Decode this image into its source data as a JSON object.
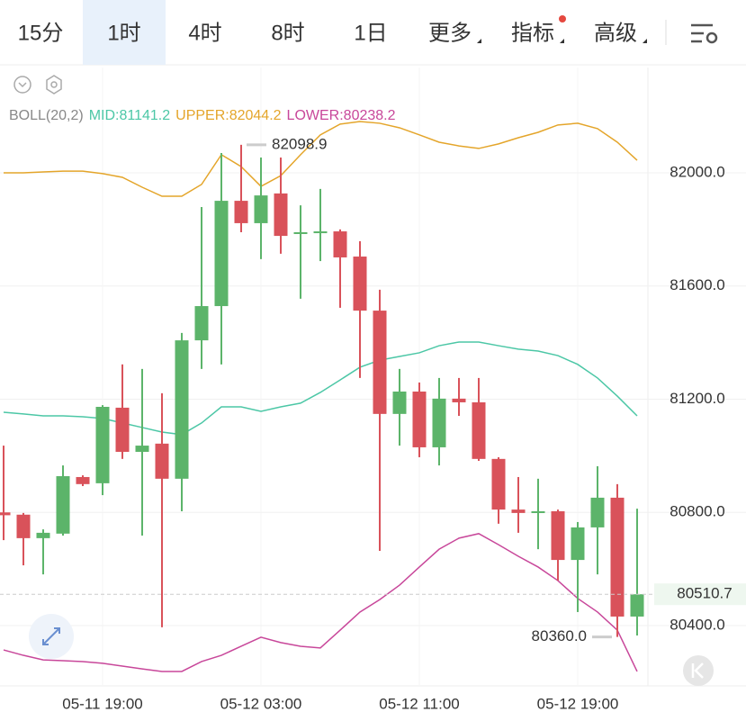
{
  "tabs": {
    "items": [
      "15分",
      "1时",
      "4时",
      "8时",
      "1日",
      "更多",
      "指标",
      "高级"
    ],
    "active": 1
  },
  "chart_data": {
    "type": "candlestick",
    "indicator": "BOLL(20,2)",
    "categories": [
      null,
      null,
      null,
      null,
      null,
      "05-11 19:00",
      null,
      null,
      null,
      null,
      null,
      null,
      null,
      "05-12 03:00",
      null,
      null,
      null,
      null,
      null,
      null,
      null,
      "05-12 11:00",
      null,
      null,
      null,
      null,
      null,
      null,
      null,
      "05-12 19:00",
      null,
      null,
      null
    ],
    "open": [
      80800,
      80792,
      80709,
      80725,
      80925,
      80903,
      81170,
      81014,
      81043,
      80919,
      81408,
      81529,
      81901,
      81822,
      81927,
      81785,
      81787,
      81793,
      81704,
      81513,
      81148,
      81227,
      81030,
      81202,
      81189,
      80989,
      80810,
      80798,
      80804,
      80632,
      80747,
      80852,
      80432
    ],
    "high": [
      81036,
      80798,
      80740,
      80966,
      80931,
      81179,
      81323,
      81307,
      81221,
      81434,
      81879,
      82070,
      82098.9,
      82054,
      82054,
      81885,
      81943,
      81800,
      81758,
      81587,
      81307,
      81259,
      81275,
      81275,
      81275,
      80995,
      80925,
      80919,
      80810,
      80766,
      80963,
      80900,
      80813
    ],
    "low": [
      80702,
      80613,
      80581,
      80718,
      80893,
      80861,
      80989,
      80718,
      80394,
      80804,
      81307,
      81323,
      81790,
      81695,
      81714,
      81555,
      81688,
      81523,
      81275,
      80664,
      81036,
      80995,
      80966,
      81141,
      80982,
      80760,
      80728,
      80670,
      80559,
      80448,
      80581,
      80360,
      80365
    ],
    "close": [
      80790,
      80709,
      80728,
      80928,
      80900,
      81173,
      81014,
      81036,
      80919,
      81408,
      81529,
      81901,
      81822,
      81920,
      81777,
      81790,
      81793,
      81701,
      81513,
      81148,
      81227,
      81030,
      81202,
      81189,
      80989,
      80810,
      80798,
      80804,
      80632,
      80747,
      80852,
      80432,
      80510.7
    ],
    "up_color": "#5cb46a",
    "down_color": "#d9525a",
    "bands": [
      {
        "name": "MID:81141.2",
        "color": "#4cc7a6",
        "values": [
          81154,
          81148,
          81141,
          81141,
          81138,
          81132,
          81116,
          81100,
          81084,
          81075,
          81116,
          81173,
          81173,
          81157,
          81173,
          81186,
          81224,
          81268,
          81313,
          81338,
          81351,
          81364,
          81389,
          81402,
          81402,
          81389,
          81377,
          81370,
          81354,
          81323,
          81275,
          81211,
          81141.2
        ]
      },
      {
        "name": "UPPER:82044.2",
        "color": "#e4a52a",
        "values": [
          82000,
          82000,
          82003,
          82006,
          82006,
          81997,
          81984,
          81949,
          81917,
          81917,
          81959,
          82064,
          82022,
          81952,
          81990,
          82064,
          82134,
          82172,
          82181,
          82175,
          82159,
          82134,
          82108,
          82095,
          82086,
          82102,
          82124,
          82143,
          82169,
          82175,
          82156,
          82108,
          82044.2
        ]
      },
      {
        "name": "LOWER:80238.2",
        "color": "#c8479a",
        "values": [
          80314,
          80295,
          80279,
          80276,
          80273,
          80267,
          80257,
          80247,
          80238,
          80238,
          80273,
          80295,
          80327,
          80359,
          80340,
          80327,
          80321,
          80384,
          80448,
          80492,
          80543,
          80607,
          80670,
          80709,
          80725,
          80686,
          80645,
          80607,
          80559,
          80496,
          80448,
          80384,
          80238.2
        ]
      }
    ],
    "ylim": [
      80187,
      82372
    ],
    "yticks": [
      {
        "value": 80400,
        "label": "80400.0"
      },
      {
        "value": 80800,
        "label": "80800.0"
      },
      {
        "value": 81200,
        "label": "81200.0"
      },
      {
        "value": 81600,
        "label": "81600.0"
      },
      {
        "value": 82000,
        "label": "82000.0"
      }
    ],
    "grid": true,
    "annotations": [
      {
        "value": 82098.9,
        "label": "82098.9"
      },
      {
        "value": 80360,
        "label": "80360.0"
      }
    ],
    "current_price": {
      "value": 80510.7,
      "label": "80510.7"
    }
  }
}
